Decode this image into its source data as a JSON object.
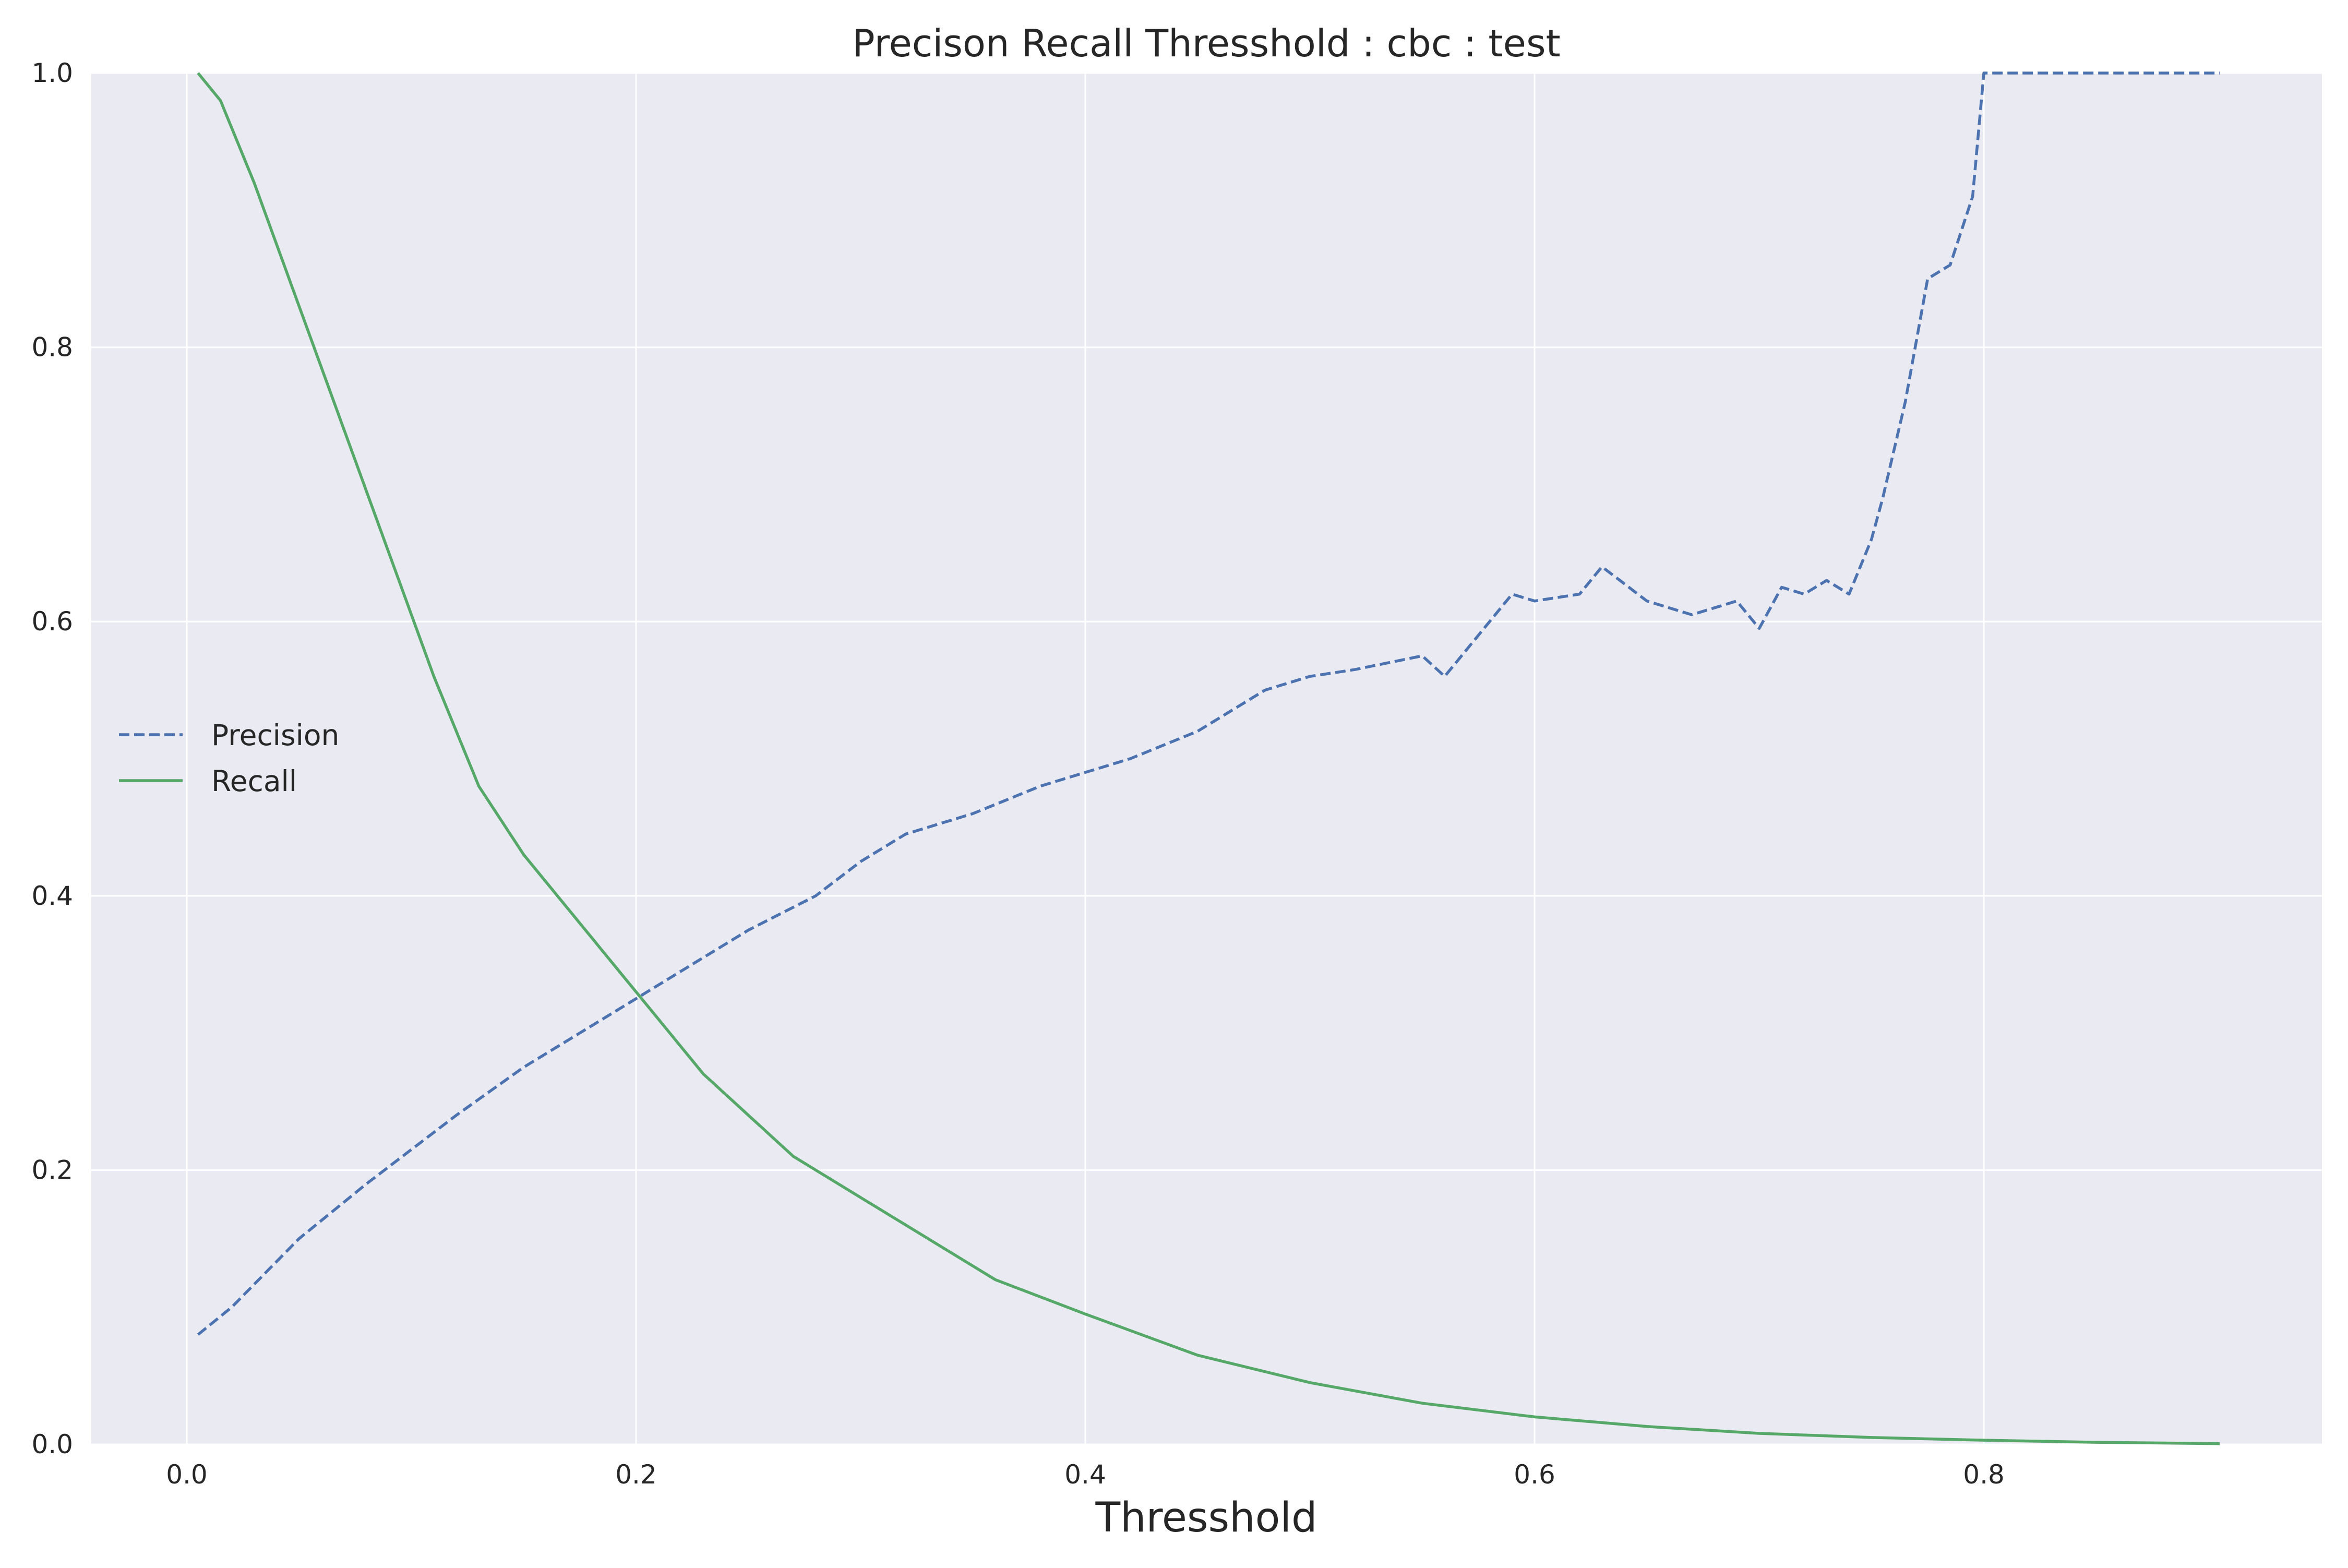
{
  "chart_data": {
    "type": "line",
    "title": "Precison Recall Thresshold : cbc : test",
    "xlabel": "Thresshold",
    "ylabel": "",
    "xlim": [
      -0.0425,
      0.9505
    ],
    "ylim": [
      0.0,
      1.0
    ],
    "x_ticks": [
      "0.0",
      "0.2",
      "0.4",
      "0.6",
      "0.8"
    ],
    "y_ticks": [
      "0.0",
      "0.2",
      "0.4",
      "0.6",
      "0.8",
      "1.0"
    ],
    "grid": true,
    "legend_position": "center-left",
    "series": [
      {
        "name": "Precision",
        "style": "dashed",
        "color": "#4c72b0",
        "x": [
          0.005,
          0.02,
          0.05,
          0.08,
          0.1,
          0.12,
          0.15,
          0.18,
          0.2,
          0.22,
          0.25,
          0.28,
          0.3,
          0.32,
          0.35,
          0.38,
          0.4,
          0.42,
          0.45,
          0.48,
          0.5,
          0.52,
          0.55,
          0.56,
          0.58,
          0.59,
          0.6,
          0.62,
          0.63,
          0.65,
          0.67,
          0.69,
          0.7,
          0.71,
          0.72,
          0.73,
          0.74,
          0.75,
          0.755,
          0.765,
          0.775,
          0.785,
          0.795,
          0.8,
          0.81,
          0.905
        ],
        "y": [
          0.08,
          0.1,
          0.15,
          0.19,
          0.215,
          0.24,
          0.275,
          0.305,
          0.325,
          0.345,
          0.375,
          0.4,
          0.425,
          0.445,
          0.46,
          0.48,
          0.49,
          0.5,
          0.52,
          0.55,
          0.56,
          0.565,
          0.575,
          0.56,
          0.6,
          0.62,
          0.615,
          0.62,
          0.64,
          0.615,
          0.605,
          0.615,
          0.595,
          0.625,
          0.62,
          0.63,
          0.62,
          0.66,
          0.69,
          0.76,
          0.85,
          0.86,
          0.91,
          1.0,
          1.0,
          1.0
        ]
      },
      {
        "name": "Recall",
        "style": "solid",
        "color": "#55a868",
        "x": [
          0.005,
          0.015,
          0.03,
          0.05,
          0.07,
          0.09,
          0.11,
          0.13,
          0.15,
          0.17,
          0.19,
          0.21,
          0.23,
          0.25,
          0.27,
          0.3,
          0.33,
          0.36,
          0.4,
          0.45,
          0.5,
          0.55,
          0.6,
          0.65,
          0.7,
          0.75,
          0.8,
          0.85,
          0.905
        ],
        "y": [
          1.0,
          0.98,
          0.92,
          0.83,
          0.74,
          0.65,
          0.56,
          0.48,
          0.43,
          0.39,
          0.35,
          0.31,
          0.27,
          0.24,
          0.21,
          0.18,
          0.15,
          0.12,
          0.095,
          0.065,
          0.045,
          0.03,
          0.02,
          0.013,
          0.008,
          0.005,
          0.003,
          0.0015,
          0.0005
        ]
      }
    ]
  }
}
